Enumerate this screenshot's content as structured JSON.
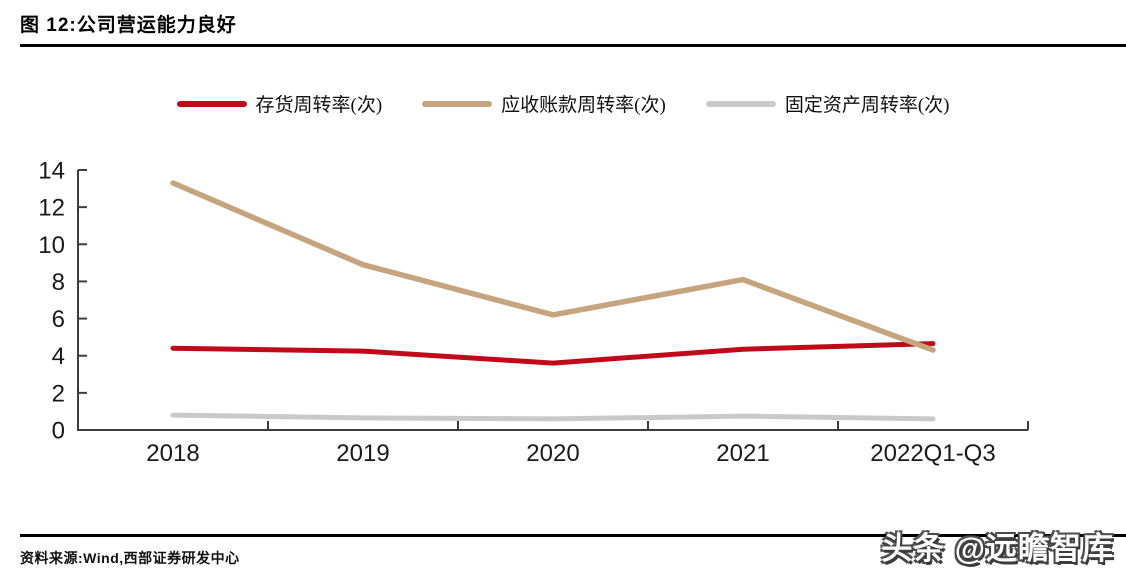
{
  "page": {
    "figure_title": "图 12:公司营运能力良好",
    "source_label": "资料来源:Wind,西部证券研发中心",
    "watermark": "头条 @远瞻智库"
  },
  "chart_data": {
    "type": "line",
    "title": "图 12:公司营运能力良好",
    "categories": [
      "2018",
      "2019",
      "2020",
      "2021",
      "2022Q1-Q3"
    ],
    "series": [
      {
        "name": "存货周转率(次)",
        "color": "#c00a19",
        "stroke_width": 5,
        "values": [
          4.4,
          4.25,
          3.6,
          4.35,
          4.65
        ]
      },
      {
        "name": "应收账款周转率(次)",
        "color": "#c5a47e",
        "stroke_width": 5.5,
        "values": [
          13.3,
          8.9,
          6.2,
          8.1,
          4.3
        ]
      },
      {
        "name": "固定资产周转率(次)",
        "color": "#c9c9c9",
        "stroke_width": 5,
        "values": [
          0.8,
          0.65,
          0.6,
          0.75,
          0.6
        ]
      }
    ],
    "xlabel": "",
    "ylabel": "",
    "ylim": [
      0,
      14
    ],
    "ytick_step": 2,
    "grid": false,
    "legend_position": "top",
    "axis_color": "#3d3d3d"
  }
}
